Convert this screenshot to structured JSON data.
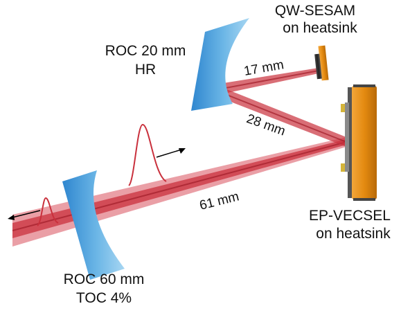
{
  "labels": {
    "sesam_line1": "QW-SESAM",
    "sesam_line2": "on heatsink",
    "roc20_line1": "ROC 20 mm",
    "roc20_line2": "HR",
    "vecsel_line1": "EP-VECSEL",
    "vecsel_line2": "on heatsink",
    "roc60_line1": "ROC 60 mm",
    "roc60_line2": "TOC 4%"
  },
  "distances": {
    "d_sesam": "17 mm",
    "d_mid": "28 mm",
    "d_out": "61 mm"
  },
  "colors": {
    "beam": "#c9303c",
    "mirror": "#4aa0dc",
    "chip": "#e48a10",
    "heatsink": "#2b2b2b",
    "gold": "#d4b43a"
  }
}
